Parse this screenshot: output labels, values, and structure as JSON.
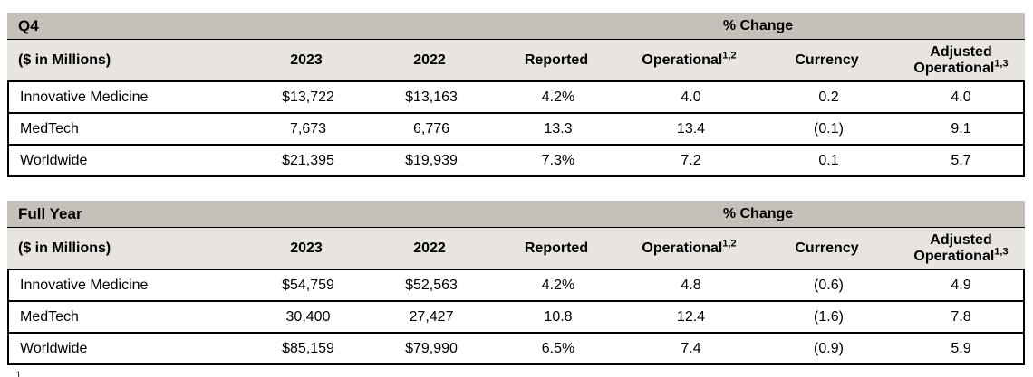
{
  "colors": {
    "band_dark": "#c6c0ba",
    "band_light": "#e8e5e1",
    "border": "#000000",
    "background": "#ffffff",
    "text": "#000000"
  },
  "tables": [
    {
      "title": "Q4",
      "change_header": "% Change",
      "unit_label": "($ in Millions)",
      "columns": [
        {
          "label": "2023",
          "sup": ""
        },
        {
          "label": "2022",
          "sup": ""
        },
        {
          "label": "Reported",
          "sup": ""
        },
        {
          "label": "Operational",
          "sup": "1,2"
        },
        {
          "label": "Currency",
          "sup": ""
        },
        {
          "label": "Adjusted Operational",
          "sup": "1,3"
        }
      ],
      "rows": [
        {
          "label": "Innovative Medicine",
          "values": [
            "$13,722",
            "$13,163",
            "4.2%",
            "4.0",
            "0.2",
            "4.0"
          ]
        },
        {
          "label": "MedTech",
          "values": [
            "7,673",
            "6,776",
            "13.3",
            "13.4",
            "(0.1)",
            "9.1"
          ]
        },
        {
          "label": "Worldwide",
          "values": [
            "$21,395",
            "$19,939",
            "7.3%",
            "7.2",
            "0.1",
            "5.7"
          ]
        }
      ]
    },
    {
      "title": "Full Year",
      "change_header": "% Change",
      "unit_label": "($ in Millions)",
      "columns": [
        {
          "label": "2023",
          "sup": ""
        },
        {
          "label": "2022",
          "sup": ""
        },
        {
          "label": "Reported",
          "sup": ""
        },
        {
          "label": "Operational",
          "sup": "1,2"
        },
        {
          "label": "Currency",
          "sup": ""
        },
        {
          "label": "Adjusted Operational",
          "sup": "1,3"
        }
      ],
      "rows": [
        {
          "label": "Innovative Medicine",
          "values": [
            "$54,759",
            "$52,563",
            "4.2%",
            "4.8",
            "(0.6)",
            "4.9"
          ]
        },
        {
          "label": "MedTech",
          "values": [
            "30,400",
            "27,427",
            "10.8",
            "12.4",
            "(1.6)",
            "7.8"
          ]
        },
        {
          "label": "Worldwide",
          "values": [
            "$85,159",
            "$79,990",
            "6.5%",
            "7.4",
            "(0.9)",
            "5.9"
          ]
        }
      ]
    }
  ],
  "footnote_fragment": "1"
}
